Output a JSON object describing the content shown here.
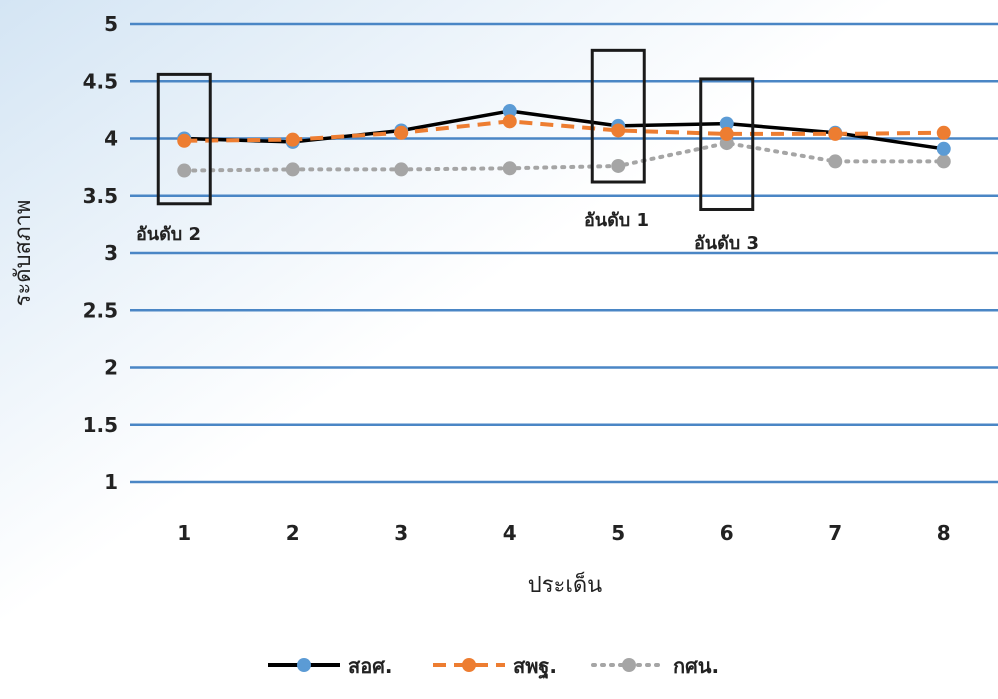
{
  "chart_data": {
    "type": "line",
    "xlabel": "ประเด็น",
    "ylabel": "ระดับสภาพ",
    "ylim": [
      1,
      5
    ],
    "y_ticks": [
      "1",
      "1.5",
      "2",
      "2.5",
      "3",
      "3.5",
      "4",
      "4.5",
      "5"
    ],
    "categories": [
      "1",
      "2",
      "3",
      "4",
      "5",
      "6",
      "7",
      "8"
    ],
    "grid": true,
    "legend_position": "bottom",
    "series": [
      {
        "name": "สอศ.",
        "values": [
          4.0,
          3.97,
          4.07,
          4.24,
          4.11,
          4.13,
          4.05,
          3.91
        ],
        "color": "#000000",
        "marker_color": "#5b9bd5",
        "line_style": "solid"
      },
      {
        "name": "สพฐ.",
        "values": [
          3.98,
          3.99,
          4.05,
          4.15,
          4.07,
          4.04,
          4.04,
          4.05
        ],
        "color": "#ed7d31",
        "marker_color": "#ed7d31",
        "line_style": "dashed"
      },
      {
        "name": "กศน.",
        "values": [
          3.72,
          3.73,
          3.73,
          3.74,
          3.76,
          3.96,
          3.8,
          3.8
        ],
        "color": "#a5a5a5",
        "marker_color": "#a5a5a5",
        "line_style": "dotted"
      }
    ],
    "annotations": [
      {
        "text": "อันดับ 2",
        "category": "1",
        "box_y_range": [
          3.43,
          4.56
        ]
      },
      {
        "text": "อันดับ 1",
        "category": "5",
        "box_y_range": [
          3.62,
          4.77
        ]
      },
      {
        "text": "อันดับ 3",
        "category": "6",
        "box_y_range": [
          3.38,
          4.52
        ]
      }
    ]
  }
}
